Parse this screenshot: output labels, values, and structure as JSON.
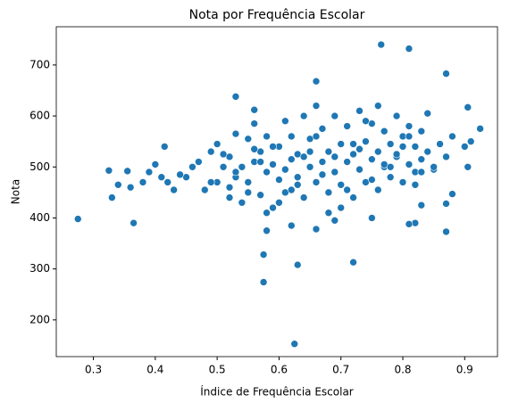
{
  "chart_data": {
    "type": "scatter",
    "title": "Nota por Frequência Escolar",
    "x_label": "Índice de Frequência Escolar",
    "y_label": "Nota",
    "xlim": [
      0.24,
      0.953
    ],
    "ylim": [
      128,
      775
    ],
    "xticks": [
      0.3,
      0.4,
      0.5,
      0.6,
      0.7,
      0.8,
      0.9
    ],
    "yticks": [
      200,
      300,
      400,
      500,
      600,
      700
    ],
    "color": "#1f77b4",
    "x": [
      0.45,
      0.47,
      0.48,
      0.49,
      0.5,
      0.5,
      0.51,
      0.52,
      0.52,
      0.53,
      0.53,
      0.54,
      0.54,
      0.55,
      0.55,
      0.56,
      0.56,
      0.57,
      0.57,
      0.58,
      0.58,
      0.59,
      0.59,
      0.6,
      0.6,
      0.61,
      0.61,
      0.62,
      0.62,
      0.63,
      0.63,
      0.64,
      0.64,
      0.65,
      0.65,
      0.66,
      0.66,
      0.67,
      0.67,
      0.68,
      0.68,
      0.69,
      0.69,
      0.7,
      0.7,
      0.71,
      0.71,
      0.72,
      0.72,
      0.73,
      0.73,
      0.74,
      0.74,
      0.75,
      0.75,
      0.76,
      0.76,
      0.77,
      0.77,
      0.78,
      0.78,
      0.79,
      0.79,
      0.8,
      0.8,
      0.81,
      0.81,
      0.82,
      0.82,
      0.83,
      0.83,
      0.84,
      0.85,
      0.86,
      0.87,
      0.46,
      0.49,
      0.51,
      0.53,
      0.55,
      0.57,
      0.59,
      0.61,
      0.63,
      0.65,
      0.67,
      0.69,
      0.71,
      0.73,
      0.75,
      0.77,
      0.79,
      0.81,
      0.83,
      0.85,
      0.52,
      0.56,
      0.6,
      0.64,
      0.68,
      0.72,
      0.76,
      0.8,
      0.84,
      0.58,
      0.62,
      0.66,
      0.7,
      0.74,
      0.78,
      0.82,
      0.44,
      0.42,
      0.4,
      0.38,
      0.43,
      0.41,
      0.39,
      0.275,
      0.765,
      0.81,
      0.87,
      0.575,
      0.575,
      0.63,
      0.72,
      0.625,
      0.365,
      0.87,
      0.325,
      0.33,
      0.355,
      0.415,
      0.66,
      0.53,
      0.56,
      0.905,
      0.925,
      0.905,
      0.88,
      0.82,
      0.81,
      0.87,
      0.83,
      0.62,
      0.58,
      0.66,
      0.69,
      0.75,
      0.34,
      0.36,
      0.88,
      0.9,
      0.91
    ],
    "y": [
      480,
      510,
      455,
      530,
      470,
      545,
      500,
      440,
      520,
      565,
      480,
      500,
      430,
      555,
      470,
      510,
      585,
      445,
      530,
      490,
      560,
      420,
      505,
      540,
      475,
      590,
      450,
      515,
      560,
      480,
      525,
      440,
      600,
      500,
      555,
      470,
      620,
      510,
      575,
      450,
      530,
      490,
      600,
      465,
      545,
      510,
      580,
      440,
      525,
      495,
      610,
      470,
      550,
      515,
      585,
      455,
      530,
      500,
      570,
      480,
      545,
      520,
      600,
      470,
      560,
      505,
      580,
      490,
      540,
      515,
      570,
      530,
      495,
      545,
      520,
      500,
      470,
      525,
      490,
      450,
      510,
      540,
      495,
      465,
      530,
      485,
      520,
      455,
      535,
      475,
      505,
      525,
      560,
      490,
      500,
      460,
      535,
      430,
      520,
      410,
      545,
      620,
      540,
      605,
      410,
      455,
      560,
      420,
      590,
      500,
      465,
      485,
      470,
      505,
      470,
      455,
      480,
      490,
      398,
      740,
      732,
      683,
      328,
      274,
      308,
      313,
      153,
      390,
      373,
      493,
      440,
      492,
      540,
      668,
      638,
      612,
      617,
      575,
      500,
      447,
      390,
      388,
      428,
      425,
      385,
      375,
      378,
      395,
      400,
      465,
      460,
      560,
      540,
      550
    ]
  }
}
